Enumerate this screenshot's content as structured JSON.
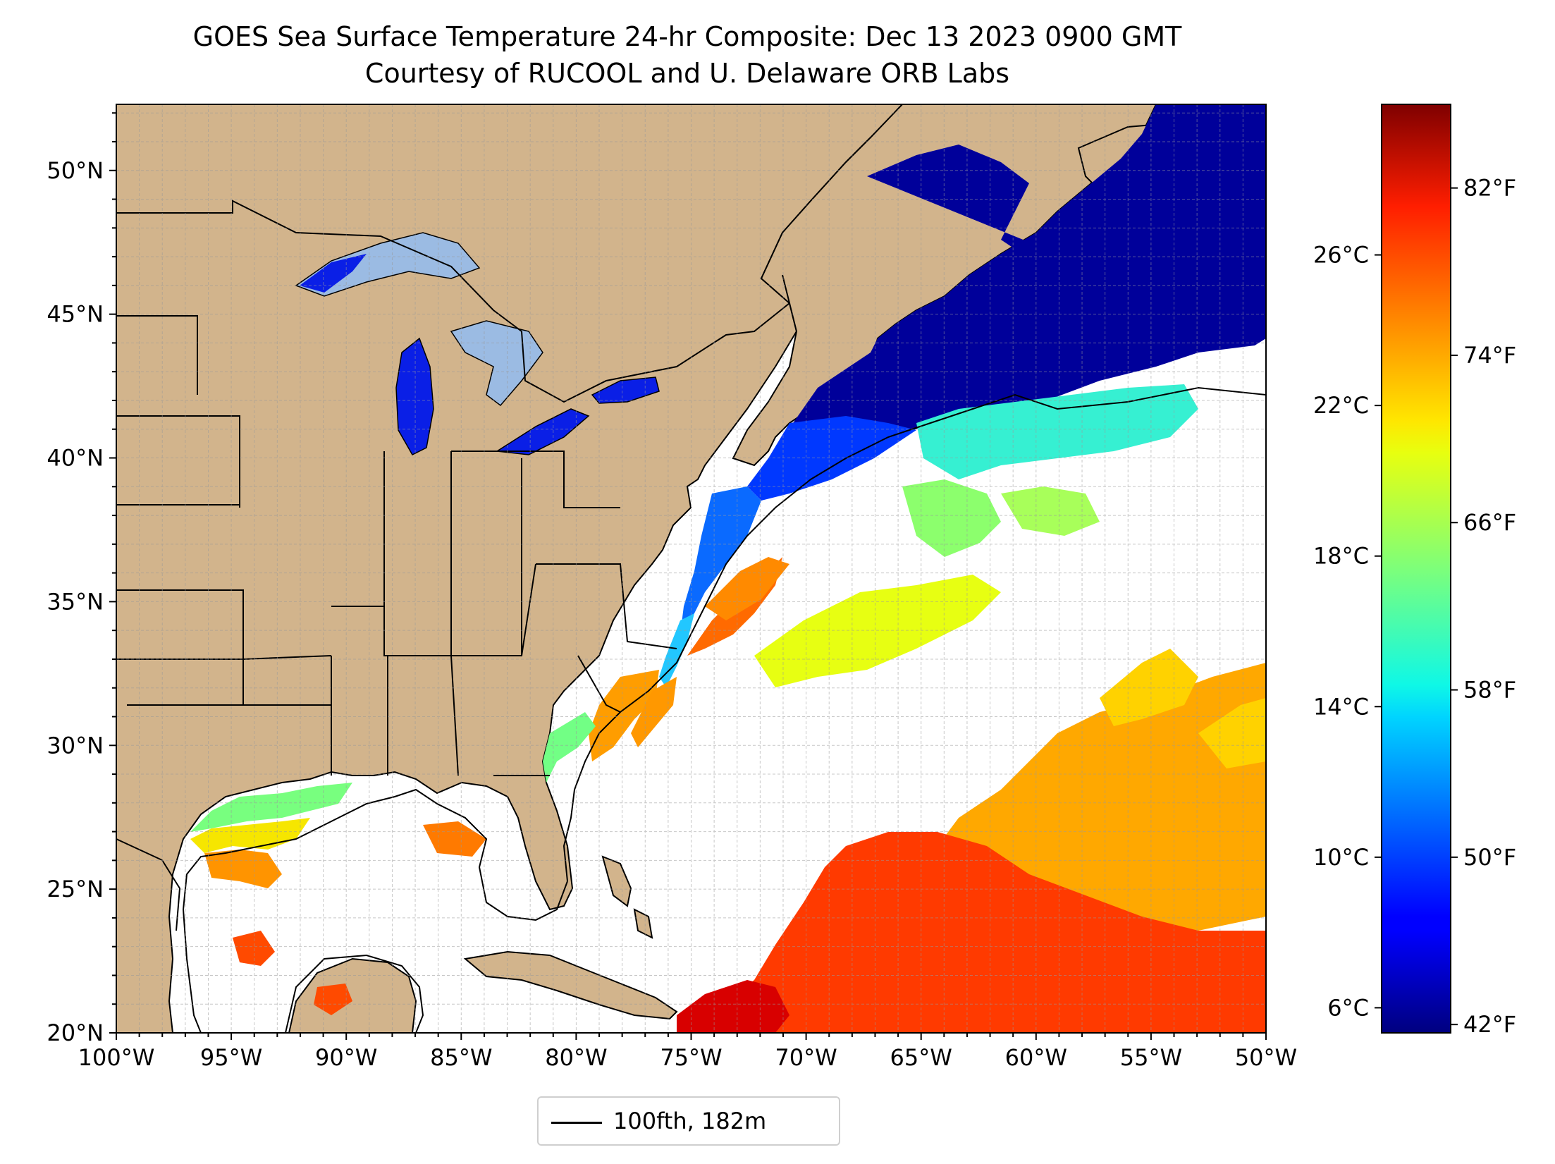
{
  "title": "GOES Sea Surface Temperature 24-hr Composite: Dec 13 2023 0900 GMT",
  "subtitle": "Courtesy of RUCOOL and U. Delaware ORB Labs",
  "map": {
    "lon_range": [
      -100,
      -50
    ],
    "lat_range": [
      20,
      52.3
    ],
    "lon_ticks": [
      {
        "value": -100,
        "label": "100°W"
      },
      {
        "value": -95,
        "label": "95°W"
      },
      {
        "value": -90,
        "label": "90°W"
      },
      {
        "value": -85,
        "label": "85°W"
      },
      {
        "value": -80,
        "label": "80°W"
      },
      {
        "value": -75,
        "label": "75°W"
      },
      {
        "value": -70,
        "label": "70°W"
      },
      {
        "value": -65,
        "label": "65°W"
      },
      {
        "value": -60,
        "label": "60°W"
      },
      {
        "value": -55,
        "label": "55°W"
      },
      {
        "value": -50,
        "label": "50°W"
      }
    ],
    "lat_ticks": [
      {
        "value": 20,
        "label": "20°N"
      },
      {
        "value": 25,
        "label": "25°N"
      },
      {
        "value": 30,
        "label": "30°N"
      },
      {
        "value": 35,
        "label": "35°N"
      },
      {
        "value": 40,
        "label": "40°N"
      },
      {
        "value": 45,
        "label": "45°N"
      },
      {
        "value": 50,
        "label": "50°N"
      }
    ],
    "grid": "dashed, 1° spacing",
    "land_color": "#d2b48c",
    "lake_color": "#9bbbe3",
    "cloud_color": "#ffffff"
  },
  "colorbar": {
    "colormap": "jet",
    "celsius_ticks": [
      {
        "value": 6,
        "label": "6°C"
      },
      {
        "value": 10,
        "label": "10°C"
      },
      {
        "value": 14,
        "label": "14°C"
      },
      {
        "value": 18,
        "label": "18°C"
      },
      {
        "value": 22,
        "label": "22°C"
      },
      {
        "value": 26,
        "label": "26°C"
      }
    ],
    "fahrenheit_ticks": [
      {
        "value": 42,
        "label": "42°F"
      },
      {
        "value": 50,
        "label": "50°F"
      },
      {
        "value": 58,
        "label": "58°F"
      },
      {
        "value": 66,
        "label": "66°F"
      },
      {
        "value": 74,
        "label": "74°F"
      },
      {
        "value": 82,
        "label": "82°F"
      }
    ],
    "range_f": [
      41.6,
      86.0
    ]
  },
  "legend": {
    "label": "100fth, 182m"
  }
}
